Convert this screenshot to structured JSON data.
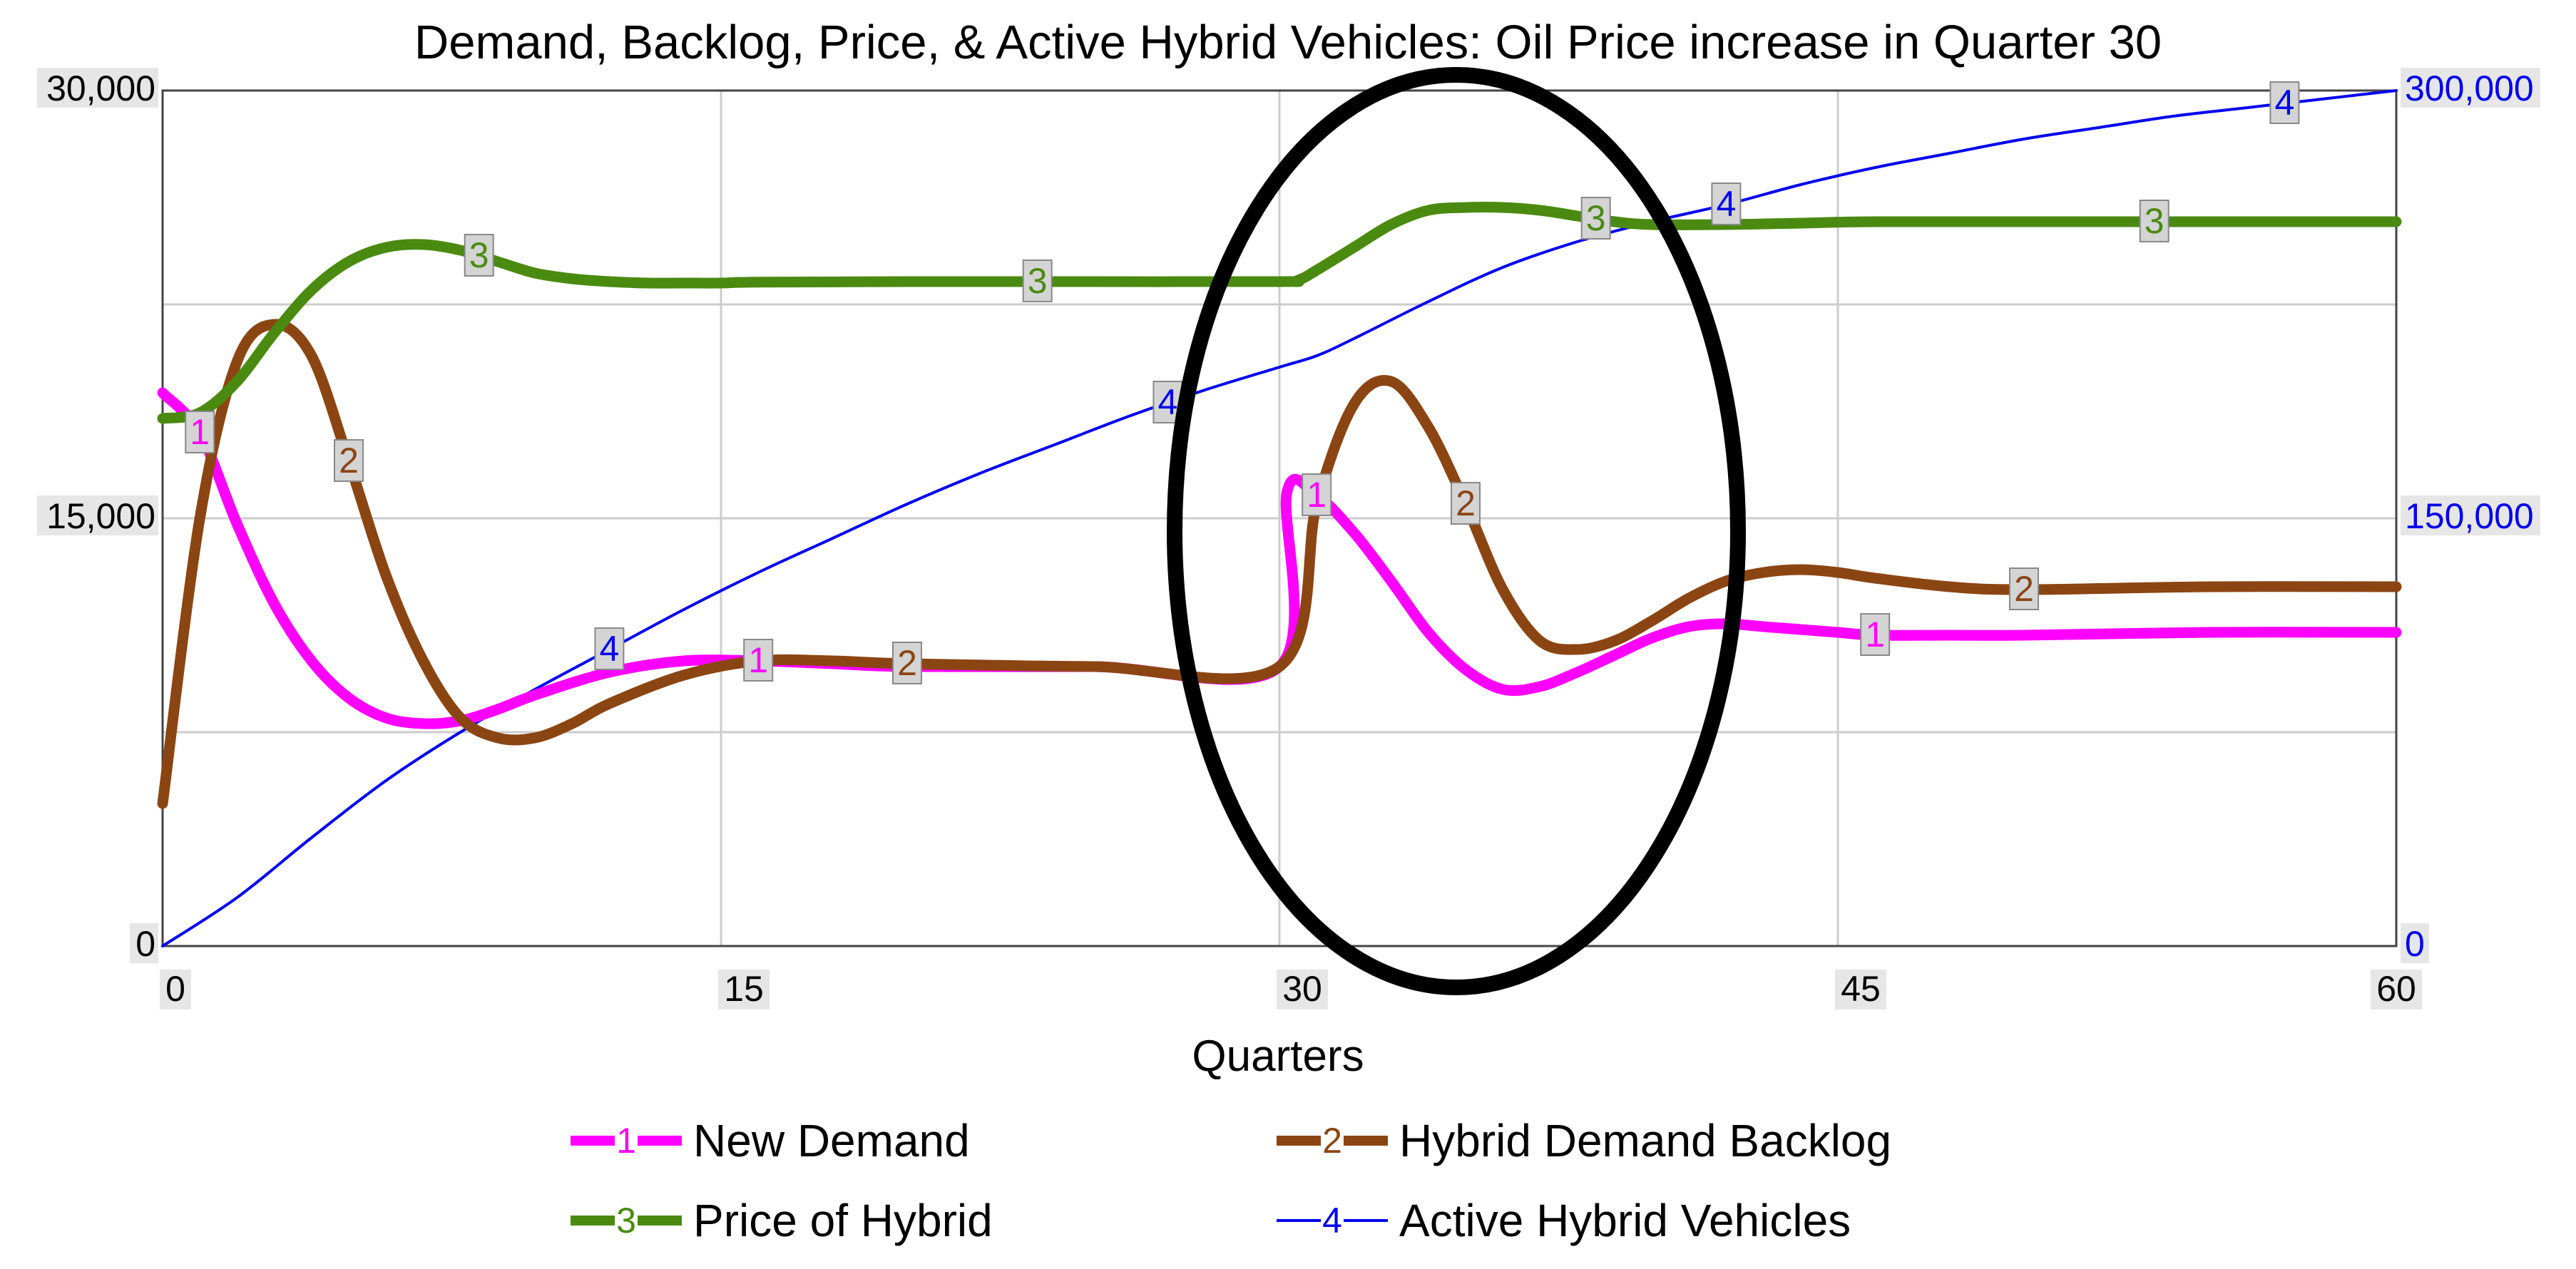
{
  "chart_data": {
    "type": "line",
    "title": "Demand, Backlog, Price, & Active Hybrid Vehicles: Oil Price increase in Quarter 30",
    "xlabel": "Quarters",
    "x_ticks": [
      "0",
      "15",
      "30",
      "45",
      "60"
    ],
    "xlim": [
      0,
      60
    ],
    "left_axis": {
      "ylim": [
        0,
        30000
      ],
      "ticks": [
        "0",
        "15,000",
        "30,000"
      ]
    },
    "right_axis": {
      "ylim": [
        0,
        300000
      ],
      "ticks": [
        "0",
        "150,000",
        "300,000"
      ],
      "color": "#0000ee"
    },
    "grid": true,
    "series": [
      {
        "id": "1",
        "name": "New Demand",
        "axis": "left",
        "color": "#ff00ff",
        "width": "thick",
        "x": [
          0,
          1,
          2,
          3,
          4,
          5,
          6,
          7,
          8,
          9,
          10,
          12,
          14,
          16,
          18,
          20,
          25,
          30,
          30.2,
          31,
          32,
          33,
          34,
          35,
          36,
          37,
          38,
          39,
          40,
          41,
          42,
          43,
          44,
          45,
          46,
          48,
          50,
          55,
          60
        ],
        "y": [
          19400,
          18000,
          14800,
          12000,
          10000,
          8700,
          8000,
          7800,
          7900,
          8300,
          8800,
          9600,
          10000,
          10000,
          9900,
          9800,
          9800,
          9800,
          15900,
          15800,
          14500,
          12800,
          11000,
          9700,
          9000,
          9100,
          9600,
          10200,
          10800,
          11200,
          11300,
          11200,
          11100,
          11000,
          10900,
          10900,
          10900,
          11000,
          11000
        ],
        "marker_x": [
          1,
          16,
          31,
          46
        ]
      },
      {
        "id": "2",
        "name": "Hybrid Demand Backlog",
        "axis": "left",
        "color": "#8b4513",
        "width": "thick",
        "x": [
          0,
          1,
          2,
          3,
          4,
          5,
          6,
          7,
          8,
          9,
          10,
          11,
          12,
          14,
          16,
          18,
          20,
          25,
          30,
          31,
          32,
          33,
          34,
          35,
          36,
          37,
          38,
          39,
          40,
          41,
          42,
          43,
          44,
          45,
          46,
          48,
          50,
          55,
          60
        ],
        "y": [
          5000,
          15000,
          20500,
          21800,
          20700,
          17000,
          13000,
          10000,
          8000,
          7300,
          7300,
          7800,
          8500,
          9500,
          10000,
          10000,
          9900,
          9800,
          9800,
          15500,
          19000,
          19800,
          18200,
          15500,
          12500,
          10700,
          10400,
          10700,
          11400,
          12200,
          12800,
          13100,
          13200,
          13100,
          12900,
          12600,
          12500,
          12600,
          12600
        ],
        "marker_x": [
          5,
          20,
          35,
          50
        ]
      },
      {
        "id": "3",
        "name": "Price of Hybrid",
        "axis": "left",
        "color": "#4a8a10",
        "width": "thick",
        "x": [
          0,
          1,
          2,
          3,
          4,
          5,
          6,
          7,
          8,
          9,
          10,
          11,
          12,
          13,
          14,
          15,
          16,
          20,
          25,
          30,
          30.5,
          31,
          32,
          33,
          34,
          35,
          36,
          37,
          38,
          39,
          40,
          42,
          44,
          46,
          50,
          55,
          60
        ],
        "y": [
          18500,
          18700,
          19800,
          21500,
          23000,
          24000,
          24500,
          24600,
          24400,
          24000,
          23600,
          23400,
          23300,
          23250,
          23250,
          23250,
          23280,
          23300,
          23300,
          23300,
          23350,
          23700,
          24500,
          25300,
          25800,
          25900,
          25900,
          25800,
          25600,
          25400,
          25300,
          25300,
          25350,
          25400,
          25400,
          25400,
          25400
        ],
        "marker_x": [
          8.5,
          23.5,
          38.5,
          53.5
        ]
      },
      {
        "id": "4",
        "name": "Active Hybrid Vehicles",
        "axis": "right",
        "color": "#0000ee",
        "width": "thin",
        "x": [
          0,
          2,
          4,
          6,
          8,
          10,
          12,
          14,
          16,
          18,
          20,
          22,
          24,
          26,
          28,
          30,
          31,
          32,
          34,
          36,
          38,
          40,
          42,
          44,
          46,
          48,
          50,
          52,
          54,
          56,
          58,
          60
        ],
        "y": [
          0,
          17000,
          38000,
          58000,
          75000,
          90000,
          104000,
          118000,
          131000,
          143000,
          155000,
          166000,
          176000,
          186000,
          195000,
          203000,
          207000,
          213000,
          226000,
          238000,
          247000,
          254000,
          260000,
          267000,
          273000,
          278000,
          283000,
          287000,
          291000,
          294000,
          297000,
          300000
        ],
        "marker_x": [
          12,
          27,
          42,
          57
        ]
      }
    ],
    "annotations": [
      {
        "type": "ellipse",
        "description": "highlight",
        "x_center": 34.7,
        "y_center": 15000,
        "color": "#000000"
      }
    ]
  }
}
